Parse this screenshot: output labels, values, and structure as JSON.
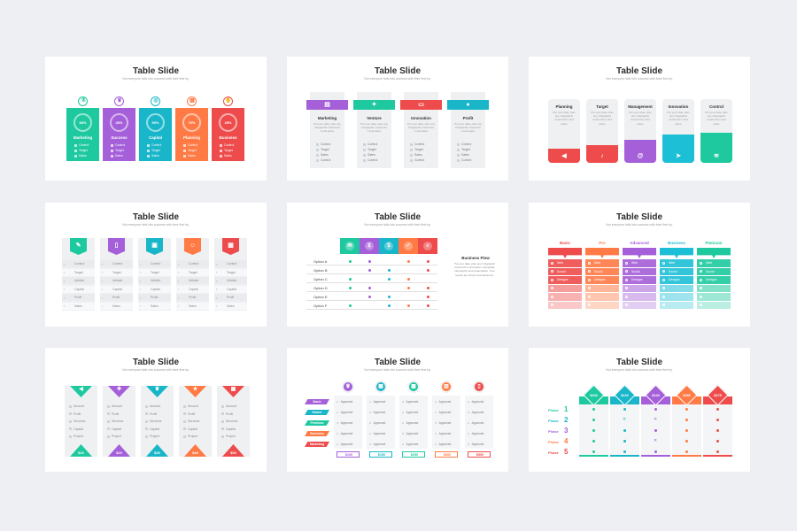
{
  "slide_title": "Table Slide",
  "slide_subtitle": "Not everyone falls into success with their first try.",
  "colors": {
    "green": "#1fc9a0",
    "purple": "#a55fd9",
    "teal": "#19b6c9",
    "orange": "#ff7a45",
    "red": "#ee4c4c",
    "blue": "#1dbfd6"
  },
  "s1": {
    "columns": [
      {
        "percent": "80%",
        "label": "Marketing",
        "icon": "flask-icon"
      },
      {
        "percent": "40%",
        "label": "Success",
        "icon": "trophy-icon"
      },
      {
        "percent": "90%",
        "label": "Capital",
        "icon": "coins-icon"
      },
      {
        "percent": "70%",
        "label": "Planning",
        "icon": "calendar-icon"
      },
      {
        "percent": "25%",
        "label": "Business",
        "icon": "hand-icon"
      }
    ],
    "items": [
      "Control",
      "Target",
      "Sales"
    ]
  },
  "s2": {
    "columns": [
      {
        "label": "Marketing",
        "icon": "chart-icon"
      },
      {
        "label": "Venture",
        "icon": "handshake-icon"
      },
      {
        "label": "Innovation",
        "icon": "laptop-icon"
      },
      {
        "label": "Profit",
        "icon": "piggy-icon"
      }
    ],
    "desc": "Put your data, plan any infographic customize it and place",
    "items": [
      "Control",
      "Target",
      "Sales",
      "Control"
    ]
  },
  "s3": {
    "columns": [
      {
        "label": "Planning",
        "icon": "megaphone-icon"
      },
      {
        "label": "Target",
        "icon": "bell-icon"
      },
      {
        "label": "Management",
        "icon": "at-icon"
      },
      {
        "label": "Innovation",
        "icon": "send-icon"
      },
      {
        "label": "Control",
        "icon": "wifi-icon"
      }
    ],
    "desc": "Put your data, plan any infographic customize it and place"
  },
  "s4": {
    "columns": [
      {
        "icon": "clip-icon"
      },
      {
        "icon": "doc-icon"
      },
      {
        "icon": "note-icon"
      },
      {
        "icon": "person-icon"
      },
      {
        "icon": "calendar-icon"
      }
    ],
    "items": [
      "Control",
      "Target",
      "Vehicle",
      "Capital",
      "Profit",
      "Sales"
    ]
  },
  "s5": {
    "options": [
      "Option A",
      "Option B",
      "Option C",
      "Option D",
      "Option E",
      "Option F"
    ],
    "side_title": "Business Flow",
    "side_text": "Put your data, plan any infographic customize it and place it alongside infographic and presentation. Your results are shown and awesome.",
    "header_icons": [
      "chat-icon",
      "cart-icon",
      "dollar-icon",
      "check-icon",
      "search-icon"
    ]
  },
  "s6": {
    "columns": [
      "Basic",
      "Pro",
      "Advanced",
      "Business",
      "Platinum"
    ],
    "rows": [
      "Web",
      "Social",
      "Designs"
    ]
  },
  "s7": {
    "columns": [
      {
        "price": "$10",
        "icon": "megaphone-icon"
      },
      {
        "price": "$20",
        "icon": "gift-icon"
      },
      {
        "price": "$30",
        "icon": "trophy-icon"
      },
      {
        "price": "$40",
        "icon": "star-icon"
      },
      {
        "price": "$50",
        "icon": "calendar-icon"
      }
    ],
    "items": [
      "Amount",
      "Profit",
      "Services",
      "Capital",
      "Project"
    ]
  },
  "s8": {
    "tiers": [
      "Basic",
      "Starter",
      "Premium",
      "Business",
      "Marketing"
    ],
    "prices": [
      "$100",
      "$150",
      "$250",
      "$300",
      "$500"
    ],
    "item": "Approved",
    "col_icons": [
      "trophy-icon",
      "calendar-icon",
      "image-icon",
      "money-icon",
      "doc-icon"
    ]
  },
  "s9": {
    "phases": [
      {
        "label": "Phase",
        "num": "1"
      },
      {
        "label": "Phase",
        "num": "2"
      },
      {
        "label": "Phase",
        "num": "3"
      },
      {
        "label": "Phase",
        "num": "4"
      },
      {
        "label": "Phase",
        "num": "5"
      }
    ],
    "prices": [
      "$100",
      "$120",
      "$140",
      "$180",
      "$275"
    ]
  }
}
